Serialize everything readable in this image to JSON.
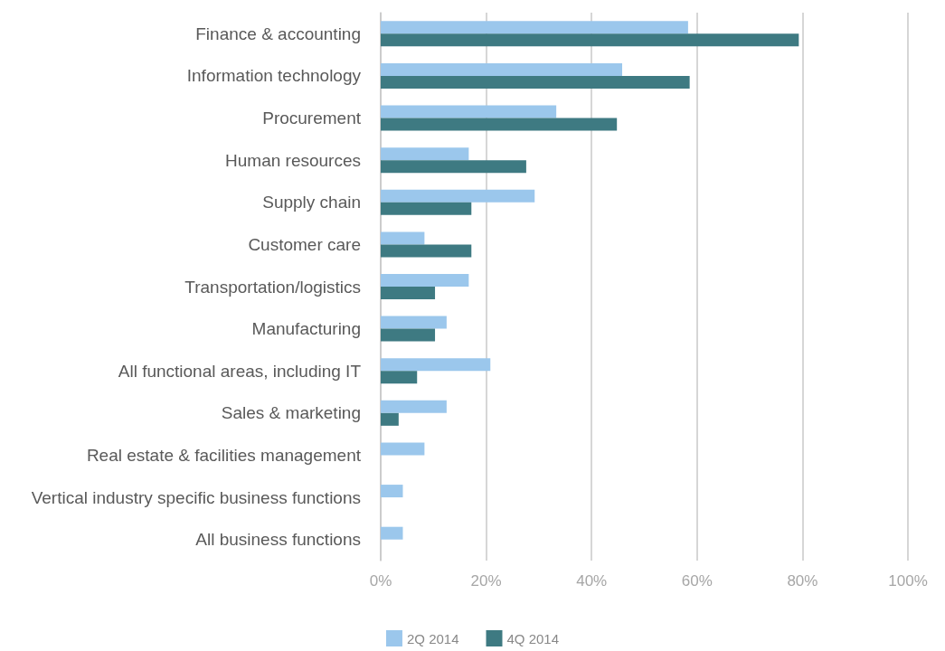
{
  "chart_data": {
    "type": "bar",
    "orientation": "horizontal",
    "categories": [
      "Finance & accounting",
      "Information technology",
      "Procurement",
      "Human resources",
      "Supply chain",
      "Customer care",
      "Transportation/logistics",
      "Manufacturing",
      "All functional areas, including IT",
      "Sales & marketing",
      "Real estate & facilities management",
      "Vertical industry specific business functions",
      "All business functions"
    ],
    "series": [
      {
        "name": "2Q 2014",
        "color": "#9bc7ec",
        "values": [
          58.3,
          45.8,
          33.3,
          16.7,
          29.2,
          8.3,
          16.7,
          12.5,
          20.8,
          12.5,
          8.3,
          4.2,
          4.2
        ]
      },
      {
        "name": "4Q 2014",
        "color": "#3e7a82",
        "values": [
          79.3,
          58.6,
          44.8,
          27.6,
          17.2,
          17.2,
          10.3,
          10.3,
          6.9,
          3.4,
          0,
          0,
          0
        ]
      }
    ],
    "xlim": [
      0,
      100
    ],
    "xticks": [
      {
        "value": 0,
        "label": "0%"
      },
      {
        "value": 20,
        "label": "20%"
      },
      {
        "value": 40,
        "label": "40%"
      },
      {
        "value": 60,
        "label": "60%"
      },
      {
        "value": 80,
        "label": "80%"
      },
      {
        "value": 100,
        "label": "100%"
      }
    ],
    "grid": "x",
    "legend": "bottom"
  }
}
